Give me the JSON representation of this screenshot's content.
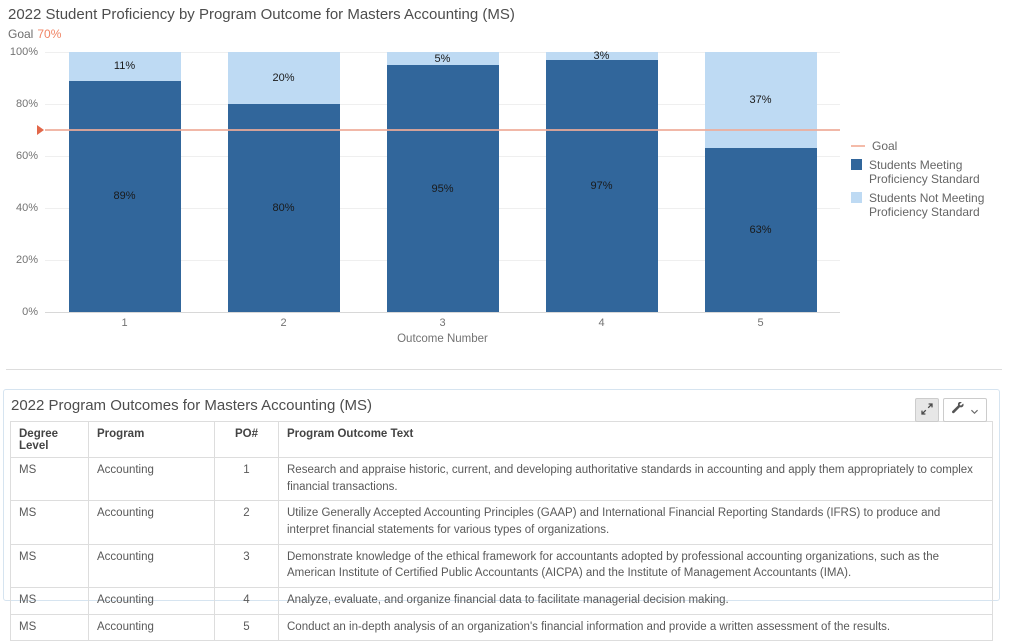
{
  "chart": {
    "title": "2022 Student Proficiency by Program Outcome for Masters Accounting (MS)",
    "goal_prefix": "Goal",
    "goal_value": "70%"
  },
  "chart_data": {
    "type": "bar",
    "stacked": true,
    "title": "2022 Student Proficiency by Program Outcome for Masters Accounting (MS)",
    "categories": [
      "1",
      "2",
      "3",
      "4",
      "5"
    ],
    "series": [
      {
        "name": "Students Meeting Proficiency Standard",
        "color": "#31669b",
        "values": [
          89,
          80,
          95,
          97,
          63
        ]
      },
      {
        "name": "Students Not Meeting Proficiency Standard",
        "color": "#bedaf3",
        "values": [
          11,
          20,
          5,
          3,
          37
        ]
      }
    ],
    "bar_label_format": "percent",
    "goal_line": {
      "label": "Goal",
      "value": 70,
      "line_color": "#eeab99",
      "marker_color": "#e2674a"
    },
    "xlabel": "Outcome Number",
    "ylabel": "",
    "ylim": [
      0,
      100
    ],
    "ytick_values": [
      0,
      20,
      40,
      60,
      80,
      100
    ],
    "ytick_suffix": "%",
    "grid": "horizontal",
    "legend_position": "right"
  },
  "legend": {
    "items": [
      {
        "label": "Goal",
        "type": "line",
        "color": "#f4bba9"
      },
      {
        "label": "Students Meeting Proficiency Standard",
        "type": "square",
        "color": "#31669b"
      },
      {
        "label": "Students Not Meeting Proficiency Standard",
        "type": "square",
        "color": "#bedaf3"
      }
    ]
  },
  "table": {
    "title": "2022 Program Outcomes for Masters Accounting (MS)",
    "columns": [
      "Degree Level",
      "Program",
      "PO#",
      "Program Outcome Text"
    ],
    "rows": [
      [
        "MS",
        "Accounting",
        "1",
        "Research and appraise historic, current, and developing authoritative standards in accounting and apply them appropriately to complex financial transactions."
      ],
      [
        "MS",
        "Accounting",
        "2",
        "Utilize Generally Accepted Accounting Principles (GAAP) and International Financial Reporting Standards (IFRS) to produce and interpret financial statements for various types of organizations."
      ],
      [
        "MS",
        "Accounting",
        "3",
        "Demonstrate knowledge of the ethical framework for accountants adopted by professional accounting organizations, such as the American Institute of Certified Public Accountants (AICPA) and the Institute of Management Accountants (IMA)."
      ],
      [
        "MS",
        "Accounting",
        "4",
        "Analyze, evaluate, and organize financial data to facilitate managerial decision making."
      ],
      [
        "MS",
        "Accounting",
        "5",
        "Conduct an in-depth analysis of an organization's financial information and provide a written assessment of the results."
      ]
    ]
  },
  "icons": {
    "expand": "expand-arrows-icon",
    "tools": "wrench-icon",
    "dropdown": "chevron-down-icon"
  },
  "colors": {
    "meeting_blue": "#31669b",
    "not_meeting_blue": "#bedaf3",
    "goal_salmon": "#f08465",
    "grid_gray": "#efefef",
    "panel_border": "#d6e4f0"
  }
}
